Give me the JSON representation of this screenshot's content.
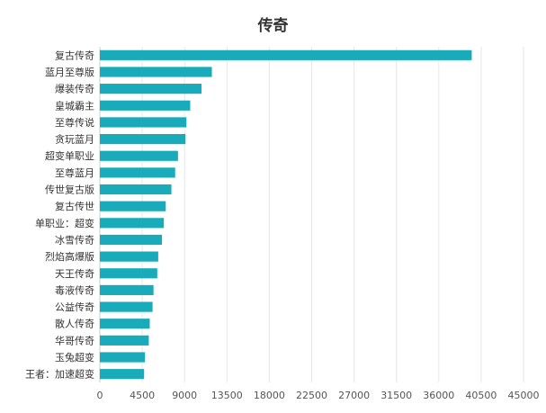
{
  "chart_data": {
    "type": "bar",
    "orientation": "horizontal",
    "title": "传奇",
    "categories": [
      "复古传奇",
      "蓝月至尊版",
      "爆装传奇",
      "皇城霸主",
      "至尊传说",
      "贪玩蓝月",
      "超变单职业",
      "至尊蓝月",
      "传世复古版",
      "复古传世",
      "单职业：超变",
      "冰雪传奇",
      "烈焰高爆版",
      "天王传奇",
      "毒液传奇",
      "公益传奇",
      "散人传奇",
      "华哥传奇",
      "玉兔超变",
      "王者：加速超变"
    ],
    "values": [
      39500,
      11900,
      10800,
      9600,
      9200,
      9100,
      8300,
      8000,
      7600,
      7000,
      6800,
      6600,
      6200,
      6100,
      5700,
      5600,
      5300,
      5200,
      4800,
      4700
    ],
    "xlim": [
      0,
      45000
    ],
    "xticks": [
      0,
      4500,
      9000,
      13500,
      18000,
      22500,
      27000,
      31500,
      36000,
      40500,
      45000
    ],
    "xlabel": "",
    "ylabel": "",
    "grid": true,
    "legend": "none",
    "bar_color": "#1aabbb"
  }
}
